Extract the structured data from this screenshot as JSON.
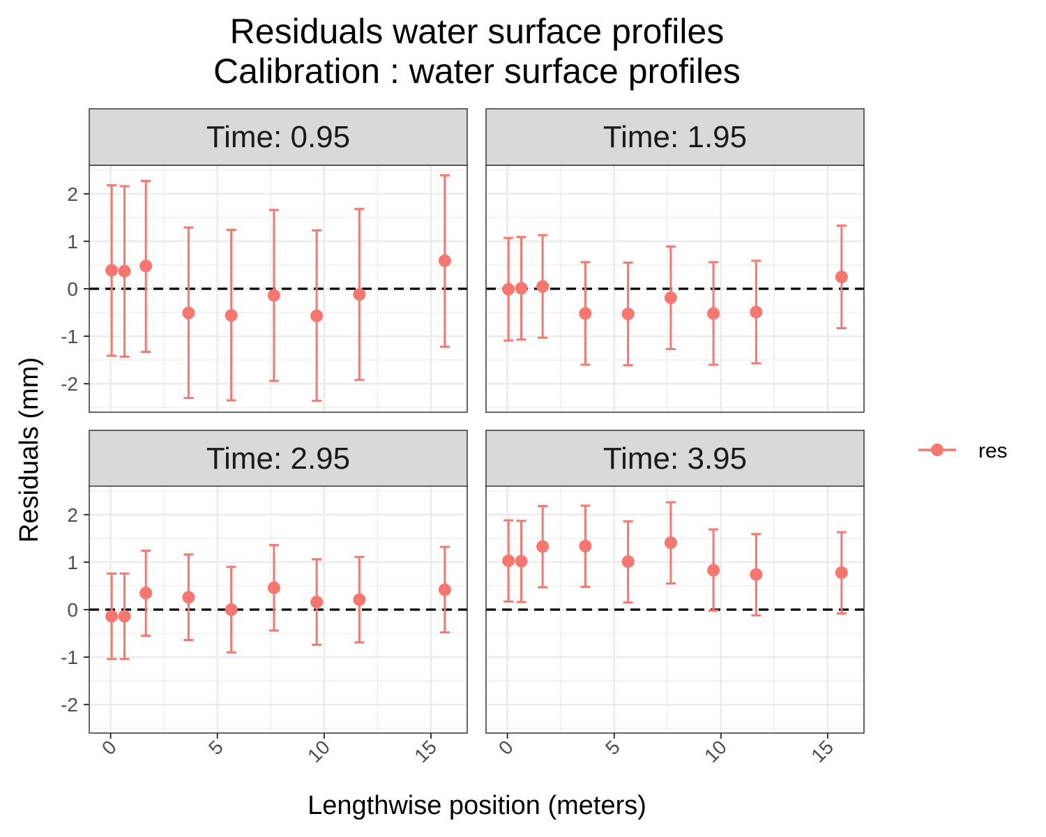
{
  "chart_data": {
    "type": "scatter",
    "title": "Residuals water surface profiles",
    "subtitle": "Calibration : water surface profiles",
    "xlabel": "Lengthwise position (meters)",
    "ylabel": "Residuals (mm)",
    "xlim": [
      -1,
      16.7
    ],
    "ylim": [
      -2.6,
      2.6
    ],
    "x_ticks": [
      0,
      5,
      10,
      15
    ],
    "x_tick_labels": [
      "0",
      "5",
      "10",
      "15"
    ],
    "y_ticks": [
      2,
      1,
      0,
      -1,
      -2
    ],
    "y_tick_labels": [
      "2",
      "1",
      "0",
      "-1",
      "-2"
    ],
    "reference_line": 0,
    "grid": true,
    "legend": {
      "position": "right",
      "label": "res"
    },
    "series_color": "#F8766D",
    "panels": [
      {
        "label": "Time: 0.95",
        "points": [
          {
            "x": 0.05,
            "y": 0.39,
            "lo": -1.41,
            "hi": 2.18
          },
          {
            "x": 0.65,
            "y": 0.37,
            "lo": -1.43,
            "hi": 2.16
          },
          {
            "x": 1.65,
            "y": 0.48,
            "lo": -1.33,
            "hi": 2.27
          },
          {
            "x": 3.65,
            "y": -0.51,
            "lo": -2.3,
            "hi": 1.29
          },
          {
            "x": 5.65,
            "y": -0.56,
            "lo": -2.35,
            "hi": 1.24
          },
          {
            "x": 7.65,
            "y": -0.14,
            "lo": -1.94,
            "hi": 1.66
          },
          {
            "x": 9.65,
            "y": -0.57,
            "lo": -2.36,
            "hi": 1.23
          },
          {
            "x": 11.65,
            "y": -0.12,
            "lo": -1.92,
            "hi": 1.68
          },
          {
            "x": 15.65,
            "y": 0.59,
            "lo": -1.22,
            "hi": 2.39
          }
        ]
      },
      {
        "label": "Time: 1.95",
        "points": [
          {
            "x": 0.05,
            "y": -0.01,
            "lo": -1.09,
            "hi": 1.07
          },
          {
            "x": 0.65,
            "y": 0.01,
            "lo": -1.07,
            "hi": 1.09
          },
          {
            "x": 1.65,
            "y": 0.05,
            "lo": -1.03,
            "hi": 1.13
          },
          {
            "x": 3.65,
            "y": -0.52,
            "lo": -1.6,
            "hi": 0.56
          },
          {
            "x": 5.65,
            "y": -0.53,
            "lo": -1.61,
            "hi": 0.55
          },
          {
            "x": 7.65,
            "y": -0.19,
            "lo": -1.27,
            "hi": 0.89
          },
          {
            "x": 9.65,
            "y": -0.52,
            "lo": -1.6,
            "hi": 0.56
          },
          {
            "x": 11.65,
            "y": -0.49,
            "lo": -1.57,
            "hi": 0.59
          },
          {
            "x": 15.65,
            "y": 0.25,
            "lo": -0.83,
            "hi": 1.33
          }
        ]
      },
      {
        "label": "Time: 2.95",
        "points": [
          {
            "x": 0.05,
            "y": -0.14,
            "lo": -1.04,
            "hi": 0.76
          },
          {
            "x": 0.65,
            "y": -0.14,
            "lo": -1.04,
            "hi": 0.76
          },
          {
            "x": 1.65,
            "y": 0.35,
            "lo": -0.55,
            "hi": 1.24
          },
          {
            "x": 3.65,
            "y": 0.26,
            "lo": -0.64,
            "hi": 1.16
          },
          {
            "x": 5.65,
            "y": 0.0,
            "lo": -0.9,
            "hi": 0.9
          },
          {
            "x": 7.65,
            "y": 0.46,
            "lo": -0.44,
            "hi": 1.36
          },
          {
            "x": 9.65,
            "y": 0.16,
            "lo": -0.74,
            "hi": 1.06
          },
          {
            "x": 11.65,
            "y": 0.21,
            "lo": -0.69,
            "hi": 1.11
          },
          {
            "x": 15.65,
            "y": 0.42,
            "lo": -0.48,
            "hi": 1.32
          }
        ]
      },
      {
        "label": "Time: 3.95",
        "points": [
          {
            "x": 0.05,
            "y": 1.03,
            "lo": 0.17,
            "hi": 1.88
          },
          {
            "x": 0.65,
            "y": 1.02,
            "lo": 0.16,
            "hi": 1.87
          },
          {
            "x": 1.65,
            "y": 1.33,
            "lo": 0.47,
            "hi": 2.18
          },
          {
            "x": 3.65,
            "y": 1.34,
            "lo": 0.48,
            "hi": 2.19
          },
          {
            "x": 5.65,
            "y": 1.01,
            "lo": 0.15,
            "hi": 1.86
          },
          {
            "x": 7.65,
            "y": 1.41,
            "lo": 0.55,
            "hi": 2.26
          },
          {
            "x": 9.65,
            "y": 0.83,
            "lo": -0.02,
            "hi": 1.69
          },
          {
            "x": 11.65,
            "y": 0.74,
            "lo": -0.12,
            "hi": 1.59
          },
          {
            "x": 15.65,
            "y": 0.78,
            "lo": -0.08,
            "hi": 1.63
          }
        ]
      }
    ]
  }
}
